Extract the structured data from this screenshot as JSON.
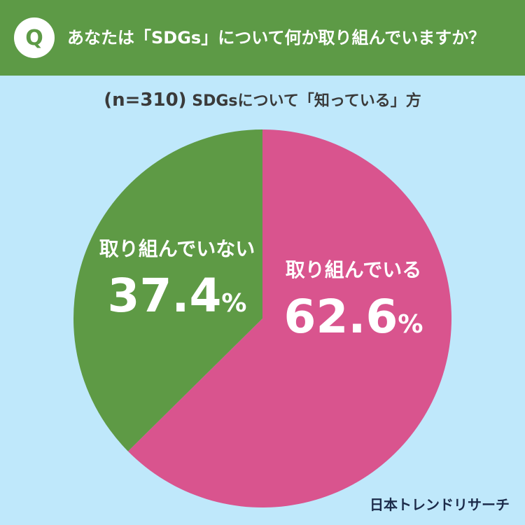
{
  "header": {
    "badge": "Q",
    "question": "あなたは「SDGs」について何か取り組んでいますか？"
  },
  "subtitle": {
    "sample": "(n=310)",
    "text": "SDGsについて「知っている」方"
  },
  "footer": {
    "brand": "日本トレンドリサーチ"
  },
  "colors": {
    "header_bg": "#5d9a46",
    "background": "#bfe8fb",
    "pink": "#d9548e",
    "green": "#5e9a45"
  },
  "chart_data": {
    "type": "pie",
    "title": "",
    "slices": [
      {
        "label": "取り組んでいる",
        "value": 62.6,
        "display": "62.6",
        "unit": "%",
        "color": "#d9548e"
      },
      {
        "label": "取り組んでいない",
        "value": 37.4,
        "display": "37.4",
        "unit": "%",
        "color": "#5e9a45"
      }
    ],
    "start_angle": "12 o'clock",
    "direction": "clockwise",
    "legend": "none"
  }
}
